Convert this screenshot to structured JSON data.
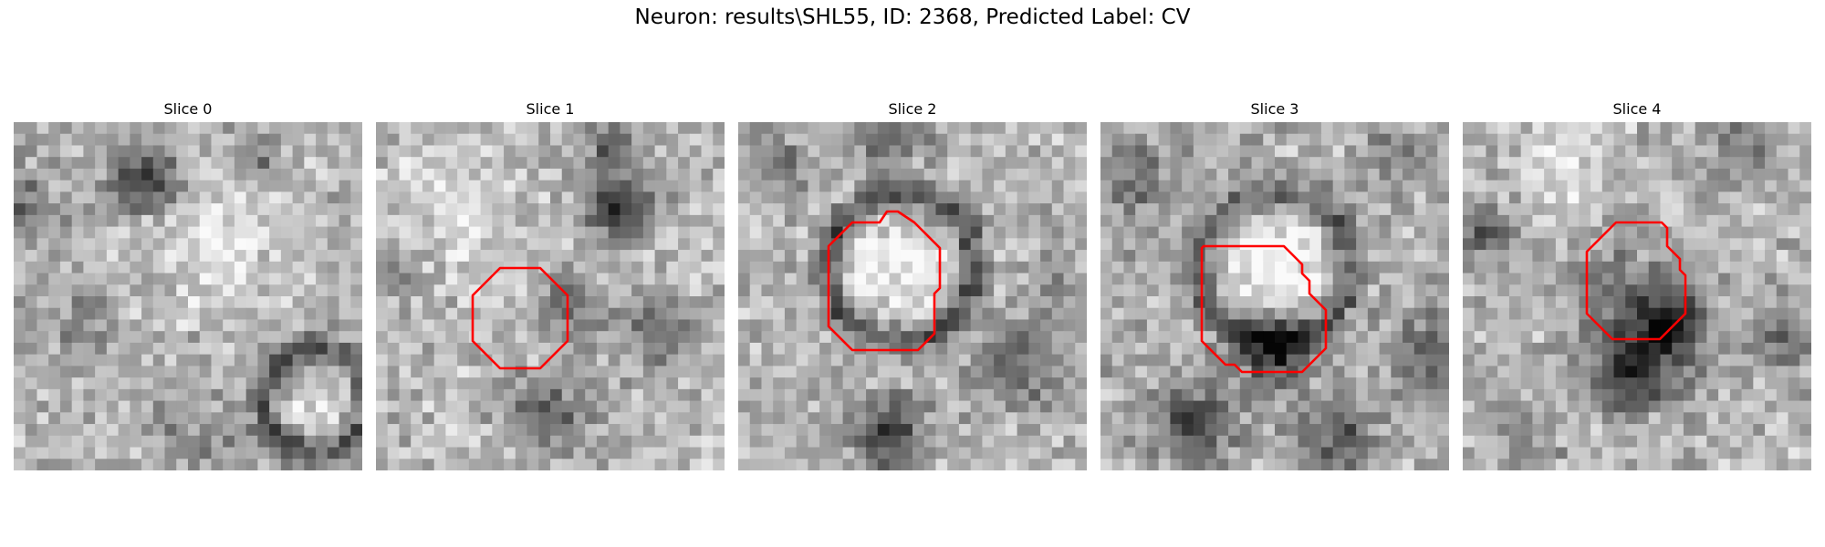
{
  "figure": {
    "title": "Neuron: results\\SHL55, ID: 2368, Predicted Label: CV"
  },
  "panels": [
    {
      "title": "Slice 0",
      "image_description": "grayscale microscopy patch, dark blob upper-left, ring structure lower-right",
      "has_outline": false
    },
    {
      "title": "Slice 1",
      "image_description": "grayscale microscopy patch with small red octagon outline in center",
      "has_outline": true
    },
    {
      "title": "Slice 2",
      "image_description": "grayscale microscopy patch with bright cell body outlined by red polygon",
      "has_outline": true
    },
    {
      "title": "Slice 3",
      "image_description": "grayscale microscopy patch with bright cell body outlined by red polygon, dark membrane below",
      "has_outline": true
    },
    {
      "title": "Slice 4",
      "image_description": "grayscale microscopy patch with red octagon outline above dark region",
      "has_outline": true
    }
  ],
  "colors": {
    "outline": "#ff0000",
    "background": "#ffffff"
  }
}
